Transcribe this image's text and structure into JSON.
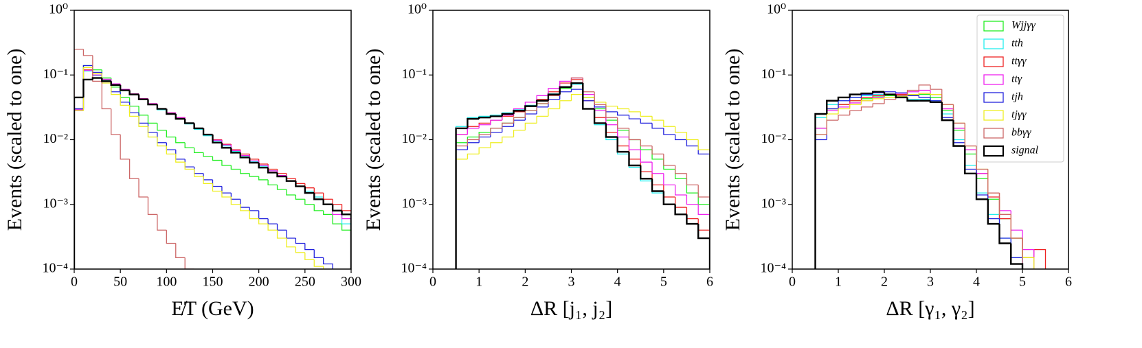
{
  "chart_data": [
    {
      "type": "histogram",
      "xlabel": "E̸T (GeV)",
      "ylabel": "Events (scaled to one)",
      "yscale": "log",
      "xlim": [
        0,
        300
      ],
      "xticks": [
        0,
        50,
        100,
        150,
        200,
        250,
        300
      ],
      "ylim": [
        0.0001,
        1
      ],
      "yticks": [
        {
          "value": 1,
          "label": "10⁰"
        },
        {
          "value": 0.1,
          "label": "10⁻¹"
        },
        {
          "value": 0.01,
          "label": "10⁻²"
        },
        {
          "value": 0.001,
          "label": "10⁻³"
        },
        {
          "value": 0.0001,
          "label": "10⁻⁴"
        }
      ],
      "bins": [
        0,
        10,
        20,
        30,
        40,
        50,
        60,
        70,
        80,
        90,
        100,
        110,
        120,
        130,
        140,
        150,
        160,
        170,
        180,
        190,
        200,
        210,
        220,
        230,
        240,
        250,
        260,
        270,
        280,
        290,
        300
      ],
      "series": [
        {
          "name": "Wjjγγ",
          "color": "#22ee22",
          "values": [
            0.03,
            0.14,
            0.12,
            0.09,
            0.065,
            0.045,
            0.033,
            0.024,
            0.018,
            0.014,
            0.011,
            0.009,
            0.0075,
            0.0063,
            0.0055,
            0.0048,
            0.004,
            0.0035,
            0.003,
            0.0027,
            0.0024,
            0.002,
            0.0017,
            0.0014,
            0.0012,
            0.001,
            0.0008,
            0.0007,
            0.0005,
            0.0004
          ]
        },
        {
          "name": "tth",
          "color": "#22eeee",
          "values": [
            0.028,
            0.115,
            0.098,
            0.083,
            0.07,
            0.058,
            0.05,
            0.042,
            0.035,
            0.029,
            0.025,
            0.021,
            0.0175,
            0.0145,
            0.0115,
            0.0095,
            0.008,
            0.0066,
            0.0056,
            0.0046,
            0.0039,
            0.0033,
            0.0028,
            0.0023,
            0.0019,
            0.0016,
            0.0013,
            0.001,
            0.0008,
            0.0005
          ]
        },
        {
          "name": "ttγγ",
          "color": "#ee2222",
          "values": [
            0.03,
            0.12,
            0.1,
            0.085,
            0.072,
            0.06,
            0.051,
            0.043,
            0.036,
            0.03,
            0.026,
            0.022,
            0.018,
            0.015,
            0.012,
            0.01,
            0.0085,
            0.007,
            0.006,
            0.005,
            0.0042,
            0.0035,
            0.003,
            0.0025,
            0.0021,
            0.0018,
            0.0015,
            0.0012,
            0.001,
            0.0008
          ]
        },
        {
          "name": "ttγ",
          "color": "#ee22ee",
          "values": [
            0.029,
            0.118,
            0.1,
            0.086,
            0.073,
            0.06,
            0.051,
            0.043,
            0.036,
            0.03,
            0.026,
            0.022,
            0.018,
            0.015,
            0.012,
            0.0098,
            0.0083,
            0.0068,
            0.0057,
            0.0047,
            0.004,
            0.0033,
            0.0028,
            0.0023,
            0.0019,
            0.0015,
            0.0012,
            0.001,
            0.0007,
            0.0006
          ]
        },
        {
          "name": "tjh",
          "color": "#2222dd",
          "values": [
            0.03,
            0.14,
            0.11,
            0.08,
            0.055,
            0.038,
            0.026,
            0.018,
            0.013,
            0.009,
            0.007,
            0.005,
            0.0038,
            0.003,
            0.0024,
            0.0019,
            0.0015,
            0.0012,
            0.0009,
            0.0008,
            0.0006,
            0.0005,
            0.0004,
            0.0003,
            0.00025,
            0.0002,
            0.00015,
            0.00012,
            null,
            null
          ]
        },
        {
          "name": "tjγγ",
          "color": "#eeee22",
          "values": [
            0.028,
            0.13,
            0.105,
            0.075,
            0.05,
            0.034,
            0.023,
            0.016,
            0.011,
            0.008,
            0.006,
            0.0045,
            0.0035,
            0.0027,
            0.0021,
            0.0016,
            0.0013,
            0.001,
            0.0008,
            0.0006,
            0.0005,
            0.0004,
            0.0003,
            0.00022,
            0.00018,
            0.00014,
            0.00011,
            null,
            null,
            null
          ]
        },
        {
          "name": "bbγγ",
          "color": "#cc6666",
          "values": [
            0.25,
            0.2,
            0.08,
            0.03,
            0.012,
            0.005,
            0.0025,
            0.0013,
            0.0007,
            0.0004,
            0.00025,
            0.00015,
            0.0001,
            null,
            null,
            null,
            null,
            null,
            null,
            null,
            null,
            null,
            null,
            null,
            null,
            null,
            null,
            null,
            null,
            null
          ]
        },
        {
          "name": "signal",
          "color": "#000000",
          "values": [
            0.045,
            0.085,
            0.09,
            0.08,
            0.07,
            0.058,
            0.05,
            0.042,
            0.035,
            0.03,
            0.025,
            0.021,
            0.018,
            0.015,
            0.012,
            0.009,
            0.0075,
            0.0063,
            0.0053,
            0.0044,
            0.0037,
            0.0031,
            0.0027,
            0.0023,
            0.0019,
            0.0015,
            0.0012,
            0.001,
            0.0008,
            0.0007
          ]
        }
      ]
    },
    {
      "type": "histogram",
      "xlabel": "ΔR [j₁, j₂]",
      "ylabel": "Events (scaled to one)",
      "yscale": "log",
      "xlim": [
        0,
        6
      ],
      "xticks": [
        0,
        1,
        2,
        3,
        4,
        5,
        6
      ],
      "ylim": [
        0.0001,
        1
      ],
      "yticks": [
        {
          "value": 1,
          "label": "10⁰"
        },
        {
          "value": 0.1,
          "label": "10⁻¹"
        },
        {
          "value": 0.01,
          "label": "10⁻²"
        },
        {
          "value": 0.001,
          "label": "10⁻³"
        },
        {
          "value": 0.0001,
          "label": "10⁻⁴"
        }
      ],
      "bins": [
        0.5,
        0.75,
        1,
        1.25,
        1.5,
        1.75,
        2,
        2.25,
        2.5,
        2.75,
        3,
        3.25,
        3.5,
        3.75,
        4,
        4.25,
        4.5,
        4.75,
        5,
        5.25,
        5.5,
        5.75,
        6
      ],
      "series": [
        {
          "name": "Wjjγγ",
          "color": "#22ee22",
          "values": [
            0.009,
            0.011,
            0.013,
            0.015,
            0.018,
            0.022,
            0.028,
            0.036,
            0.048,
            0.062,
            0.075,
            0.045,
            0.03,
            0.02,
            0.014,
            0.01,
            0.007,
            0.005,
            0.0035,
            0.0025,
            0.0015,
            0.001
          ]
        },
        {
          "name": "tth",
          "color": "#22eeee",
          "values": [
            0.016,
            0.022,
            0.023,
            0.024,
            0.026,
            0.029,
            0.034,
            0.041,
            0.051,
            0.066,
            0.072,
            0.03,
            0.017,
            0.01,
            0.006,
            0.0037,
            0.0023,
            0.0015,
            0.001,
            0.0007,
            0.0005,
            0.0003
          ]
        },
        {
          "name": "ttγγ",
          "color": "#ee2222",
          "values": [
            0.012,
            0.016,
            0.018,
            0.02,
            0.023,
            0.027,
            0.033,
            0.042,
            0.055,
            0.075,
            0.085,
            0.04,
            0.022,
            0.013,
            0.008,
            0.005,
            0.0032,
            0.002,
            0.0013,
            0.0009,
            0.0006,
            0.0004
          ]
        },
        {
          "name": "ttγ",
          "color": "#ee22ee",
          "values": [
            0.012,
            0.015,
            0.017,
            0.02,
            0.024,
            0.03,
            0.038,
            0.048,
            0.062,
            0.08,
            0.09,
            0.05,
            0.028,
            0.017,
            0.011,
            0.007,
            0.0045,
            0.003,
            0.002,
            0.0014,
            0.001,
            0.0007
          ]
        },
        {
          "name": "tjh",
          "color": "#2222dd",
          "values": [
            0.007,
            0.009,
            0.011,
            0.013,
            0.016,
            0.02,
            0.025,
            0.032,
            0.042,
            0.055,
            0.06,
            0.04,
            0.032,
            0.027,
            0.024,
            0.021,
            0.018,
            0.015,
            0.012,
            0.01,
            0.008,
            0.006
          ]
        },
        {
          "name": "tjγγ",
          "color": "#eeee22",
          "values": [
            0.005,
            0.006,
            0.0075,
            0.009,
            0.011,
            0.014,
            0.018,
            0.023,
            0.03,
            0.04,
            0.05,
            0.045,
            0.038,
            0.033,
            0.03,
            0.027,
            0.023,
            0.02,
            0.016,
            0.013,
            0.01,
            0.007
          ]
        },
        {
          "name": "bbγγ",
          "color": "#cc6666",
          "values": [
            0.008,
            0.01,
            0.012,
            0.015,
            0.018,
            0.022,
            0.028,
            0.036,
            0.048,
            0.065,
            0.09,
            0.055,
            0.035,
            0.022,
            0.015,
            0.01,
            0.008,
            0.006,
            0.004,
            0.003,
            0.002,
            0.0013
          ]
        },
        {
          "name": "signal",
          "color": "#000000",
          "values": [
            0.015,
            0.021,
            0.022,
            0.023,
            0.025,
            0.028,
            0.033,
            0.04,
            0.05,
            0.065,
            0.075,
            0.03,
            0.018,
            0.011,
            0.0065,
            0.004,
            0.0025,
            0.0016,
            0.001,
            0.0007,
            0.0005,
            0.0003
          ]
        }
      ]
    },
    {
      "type": "histogram",
      "xlabel": "ΔR [γ₁, γ₂]",
      "ylabel": "Events (scaled to one)",
      "yscale": "log",
      "legend": "upper right",
      "xlim": [
        0,
        6
      ],
      "xticks": [
        0,
        1,
        2,
        3,
        4,
        5,
        6
      ],
      "ylim": [
        0.0001,
        1
      ],
      "yticks": [
        {
          "value": 1,
          "label": "10⁰"
        },
        {
          "value": 0.1,
          "label": "10⁻¹"
        },
        {
          "value": 0.01,
          "label": "10⁻²"
        },
        {
          "value": 0.001,
          "label": "10⁻³"
        },
        {
          "value": 0.0001,
          "label": "10⁻⁴"
        }
      ],
      "bins": [
        0.5,
        0.75,
        1,
        1.25,
        1.5,
        1.75,
        2,
        2.25,
        2.5,
        2.75,
        3,
        3.25,
        3.5,
        3.75,
        4,
        4.25,
        4.5,
        4.75,
        5,
        5.25,
        5.5
      ],
      "series": [
        {
          "name": "Wjjγγ",
          "color": "#22ee22",
          "values": [
            0.015,
            0.03,
            0.035,
            0.04,
            0.043,
            0.046,
            0.048,
            0.048,
            0.048,
            0.05,
            0.045,
            0.028,
            0.014,
            0.006,
            0.0025,
            0.0012,
            0.0006,
            0.0003,
            0.00015,
            null
          ]
        },
        {
          "name": "tth",
          "color": "#22eeee",
          "values": [
            0.022,
            0.035,
            0.04,
            0.045,
            0.048,
            0.05,
            0.05,
            0.046,
            0.042,
            0.042,
            0.04,
            0.025,
            0.01,
            0.004,
            0.0015,
            0.0007,
            0.0003,
            0.00015,
            null,
            null
          ]
        },
        {
          "name": "ttγγ",
          "color": "#ee2222",
          "values": [
            0.015,
            0.03,
            0.035,
            0.04,
            0.045,
            0.048,
            0.05,
            0.05,
            0.05,
            0.052,
            0.05,
            0.03,
            0.015,
            0.007,
            0.003,
            0.0013,
            0.0006,
            0.0003,
            0.00015,
            0.0002
          ]
        },
        {
          "name": "ttγ",
          "color": "#ee22ee",
          "values": [
            0.015,
            0.028,
            0.032,
            0.037,
            0.04,
            0.045,
            0.05,
            0.052,
            0.055,
            0.058,
            0.05,
            0.03,
            0.015,
            0.007,
            0.003,
            0.0015,
            0.0008,
            0.0004,
            0.0002,
            null
          ]
        },
        {
          "name": "tjh",
          "color": "#2222dd",
          "values": [
            0.01,
            0.03,
            0.04,
            0.045,
            0.05,
            0.053,
            0.055,
            0.053,
            0.048,
            0.045,
            0.04,
            0.022,
            0.009,
            0.0035,
            0.0014,
            0.0006,
            0.0003,
            0.00015,
            null,
            null
          ]
        },
        {
          "name": "tjγγ",
          "color": "#eeee22",
          "values": [
            0.012,
            0.025,
            0.03,
            0.035,
            0.04,
            0.043,
            0.045,
            0.047,
            0.05,
            0.052,
            0.05,
            0.035,
            0.018,
            0.008,
            0.0035,
            0.0015,
            0.0007,
            0.0003,
            0.00015,
            null
          ]
        },
        {
          "name": "bbγγ",
          "color": "#cc6666",
          "values": [
            0.012,
            0.02,
            0.024,
            0.028,
            0.032,
            0.036,
            0.042,
            0.048,
            0.058,
            0.07,
            0.06,
            0.035,
            0.018,
            0.008,
            0.0035,
            0.0015,
            0.0007,
            0.0003,
            null,
            null
          ]
        },
        {
          "name": "signal",
          "color": "#000000",
          "values": [
            0.025,
            0.04,
            0.045,
            0.05,
            0.052,
            0.055,
            0.05,
            0.045,
            0.04,
            0.04,
            0.038,
            0.02,
            0.008,
            0.003,
            0.0012,
            0.0005,
            0.00025,
            0.00012,
            null,
            null
          ]
        }
      ]
    }
  ]
}
